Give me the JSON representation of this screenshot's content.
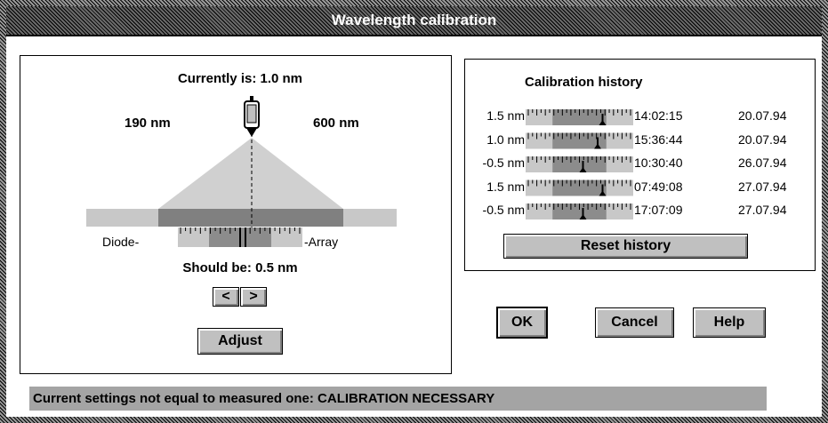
{
  "window": {
    "title": "Wavelength calibration"
  },
  "adjust_panel": {
    "current": "Currently is: 1.0 nm",
    "range_min": "190 nm",
    "range_max": "600 nm",
    "diode_label": "Diode-",
    "array_label": "-Array",
    "target": "Should be: 0.5 nm",
    "buttons": {
      "prev": "<",
      "next": ">",
      "adjust": "Adjust"
    }
  },
  "history": {
    "title": "Calibration history",
    "rows": [
      {
        "offset": "1.5 nm",
        "time": "14:02:15",
        "date": "20.07.94"
      },
      {
        "offset": "1.0 nm",
        "time": "15:36:44",
        "date": "20.07.94"
      },
      {
        "offset": "-0.5 nm",
        "time": "10:30:40",
        "date": "26.07.94"
      },
      {
        "offset": "1.5 nm",
        "time": "07:49:08",
        "date": "27.07.94"
      },
      {
        "offset": "-0.5 nm",
        "time": "17:07:09",
        "date": "27.07.94"
      }
    ],
    "reset_button": "Reset history"
  },
  "buttons": {
    "ok": "OK",
    "cancel": "Cancel",
    "help": "Help"
  },
  "status": "Current settings not equal to measured one: CALIBRATION NECESSARY"
}
